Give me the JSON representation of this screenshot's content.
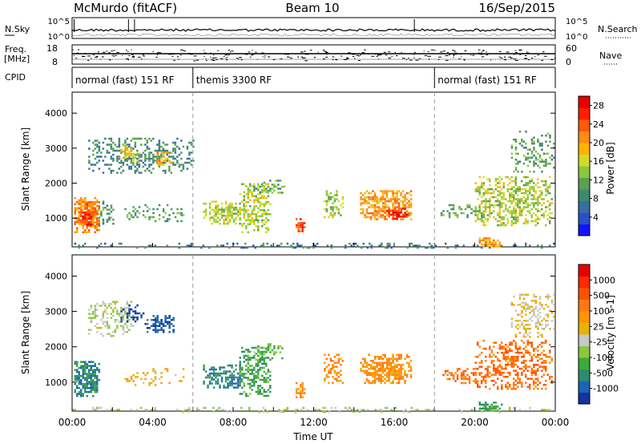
{
  "header": {
    "station": "McMurdo (fitACF)",
    "beam": "Beam 10",
    "date": "16/Sep/2015"
  },
  "strips": {
    "nsky": {
      "left_label": "N.Sky",
      "right_label": "N.Search",
      "left_ticks": [
        "10^5",
        "10^0"
      ],
      "right_ticks": [
        "10^5",
        "10^0"
      ]
    },
    "freq": {
      "left_label_1": "Freq.",
      "left_label_2": "[MHz]",
      "right_label": "Nave",
      "left_ticks": [
        "18",
        "8"
      ],
      "right_ticks": [
        "60",
        "0"
      ]
    },
    "cpid": {
      "label": "CPID",
      "segments": [
        {
          "start": 0,
          "end": 6,
          "text": "normal (fast) 151 RF"
        },
        {
          "start": 6,
          "end": 18,
          "text": "themis 3300 RF"
        },
        {
          "start": 18,
          "end": 24,
          "text": "normal (fast) 151 RF"
        }
      ]
    }
  },
  "chart_data": [
    {
      "type": "heatmap",
      "name": "power",
      "xlabel": "",
      "ylabel": "Slant Range [km]",
      "xlim": [
        0,
        24
      ],
      "ylim": [
        180,
        4600
      ],
      "y_ticks": [
        1000,
        2000,
        3000,
        4000
      ],
      "colorbar": {
        "label": "Power [dB]",
        "tick_labels": [
          "4",
          "8",
          "12",
          "16",
          "20",
          "24",
          "28"
        ],
        "colors": [
          "#1414ff",
          "#2850c8",
          "#3a6ea0",
          "#3c8a6e",
          "#5aa050",
          "#8cc83c",
          "#d2dc28",
          "#ffb400",
          "#ff8c14",
          "#ff5a0a",
          "#ff1e00",
          "#e60000"
        ],
        "range": [
          0,
          30
        ]
      },
      "regions": [
        {
          "t": [
            0.1,
            1.3
          ],
          "r": [
            600,
            1600
          ],
          "v": 22,
          "d": 0.9
        },
        {
          "t": [
            0.4,
            0.9
          ],
          "r": [
            800,
            1300
          ],
          "v": 27,
          "d": 0.9
        },
        {
          "t": [
            0.8,
            6.0
          ],
          "r": [
            2300,
            3300
          ],
          "v": 8,
          "d": 0.45
        },
        {
          "t": [
            2.3,
            3.3
          ],
          "r": [
            2600,
            3100
          ],
          "v": 17,
          "d": 0.55
        },
        {
          "t": [
            4.2,
            4.9
          ],
          "r": [
            2500,
            2900
          ],
          "v": 20,
          "d": 0.5
        },
        {
          "t": [
            2.5,
            5.5
          ],
          "r": [
            900,
            1400
          ],
          "v": 10,
          "d": 0.3
        },
        {
          "t": [
            1.3,
            2.0
          ],
          "r": [
            800,
            1500
          ],
          "v": 9,
          "d": 0.4
        },
        {
          "t": [
            6.5,
            8.5
          ],
          "r": [
            850,
            1500
          ],
          "v": 15,
          "d": 0.65
        },
        {
          "t": [
            8.3,
            9.8
          ],
          "r": [
            600,
            2000
          ],
          "v": 15,
          "d": 0.55
        },
        {
          "t": [
            9.0,
            10.5
          ],
          "r": [
            1700,
            2100
          ],
          "v": 11,
          "d": 0.45
        },
        {
          "t": [
            11.1,
            11.5
          ],
          "r": [
            600,
            1000
          ],
          "v": 26,
          "d": 0.8
        },
        {
          "t": [
            12.5,
            13.4
          ],
          "r": [
            1000,
            1800
          ],
          "v": 14,
          "d": 0.55
        },
        {
          "t": [
            14.3,
            16.8
          ],
          "r": [
            950,
            1800
          ],
          "v": 21,
          "d": 0.75
        },
        {
          "t": [
            15.5,
            16.6
          ],
          "r": [
            1000,
            1300
          ],
          "v": 27,
          "d": 0.8
        },
        {
          "t": [
            18.3,
            20.6
          ],
          "r": [
            1000,
            1400
          ],
          "v": 11,
          "d": 0.4
        },
        {
          "t": [
            20.0,
            23.8
          ],
          "r": [
            800,
            2200
          ],
          "v": 15,
          "d": 0.55
        },
        {
          "t": [
            21.8,
            23.9
          ],
          "r": [
            2300,
            3500
          ],
          "v": 10,
          "d": 0.4
        },
        {
          "t": [
            20.2,
            21.3
          ],
          "r": [
            180,
            450
          ],
          "v": 21,
          "d": 0.85
        },
        {
          "t": [
            0.0,
            24.0
          ],
          "r": [
            180,
            300
          ],
          "v": 7,
          "d": 0.3
        }
      ]
    },
    {
      "type": "heatmap",
      "name": "velocity",
      "xlabel": "Time UT",
      "ylabel": "Slant Range [km]",
      "xlim": [
        0,
        24
      ],
      "ylim": [
        180,
        4600
      ],
      "y_ticks": [
        1000,
        2000,
        3000,
        4000
      ],
      "x_tick_labels": [
        "00:00",
        "04:00",
        "08:00",
        "12:00",
        "16:00",
        "20:00",
        "00:00"
      ],
      "colorbar": {
        "label": "Velocity [m s-1]",
        "tick_labels": [
          "1000",
          "500",
          "100",
          "25",
          "-25",
          "-100",
          "-500",
          "-1000"
        ],
        "colors": [
          "#1432a0",
          "#1e64b4",
          "#2d8c6e",
          "#3caa3c",
          "#8cc83c",
          "#c8c8c8",
          "#e6b400",
          "#ff9600",
          "#ff7814",
          "#ff5000",
          "#ff2800",
          "#e60000"
        ],
        "range": [
          0,
          12
        ]
      },
      "regions": [
        {
          "t": [
            0.1,
            1.3
          ],
          "r": [
            600,
            1600
          ],
          "v": 2,
          "d": 0.9
        },
        {
          "t": [
            0.8,
            3.0
          ],
          "r": [
            2300,
            3300
          ],
          "v": 5,
          "d": 0.45
        },
        {
          "t": [
            2.4,
            3.6
          ],
          "r": [
            2700,
            3200
          ],
          "v": 0,
          "d": 0.5
        },
        {
          "t": [
            3.6,
            5.0
          ],
          "r": [
            2400,
            2900
          ],
          "v": 1,
          "d": 0.5
        },
        {
          "t": [
            2.5,
            5.5
          ],
          "r": [
            900,
            1400
          ],
          "v": 7,
          "d": 0.25
        },
        {
          "t": [
            6.5,
            8.5
          ],
          "r": [
            850,
            1500
          ],
          "v": 2,
          "d": 0.65
        },
        {
          "t": [
            8.3,
            9.8
          ],
          "r": [
            600,
            2000
          ],
          "v": 3,
          "d": 0.55
        },
        {
          "t": [
            9.0,
            10.5
          ],
          "r": [
            1700,
            2100
          ],
          "v": 4,
          "d": 0.45
        },
        {
          "t": [
            11.1,
            11.5
          ],
          "r": [
            600,
            1000
          ],
          "v": 8,
          "d": 0.8
        },
        {
          "t": [
            12.5,
            13.4
          ],
          "r": [
            1000,
            1800
          ],
          "v": 8,
          "d": 0.55
        },
        {
          "t": [
            14.3,
            16.8
          ],
          "r": [
            950,
            1800
          ],
          "v": 8,
          "d": 0.8
        },
        {
          "t": [
            18.3,
            20.6
          ],
          "r": [
            1000,
            1400
          ],
          "v": 9,
          "d": 0.45
        },
        {
          "t": [
            20.0,
            23.8
          ],
          "r": [
            800,
            2200
          ],
          "v": 9,
          "d": 0.5
        },
        {
          "t": [
            21.8,
            23.9
          ],
          "r": [
            2300,
            3500
          ],
          "v": 6,
          "d": 0.4
        },
        {
          "t": [
            20.2,
            21.3
          ],
          "r": [
            180,
            450
          ],
          "v": 3,
          "d": 0.85
        },
        {
          "t": [
            0.0,
            24.0
          ],
          "r": [
            180,
            300
          ],
          "v": 5,
          "d": 0.3
        }
      ]
    }
  ]
}
